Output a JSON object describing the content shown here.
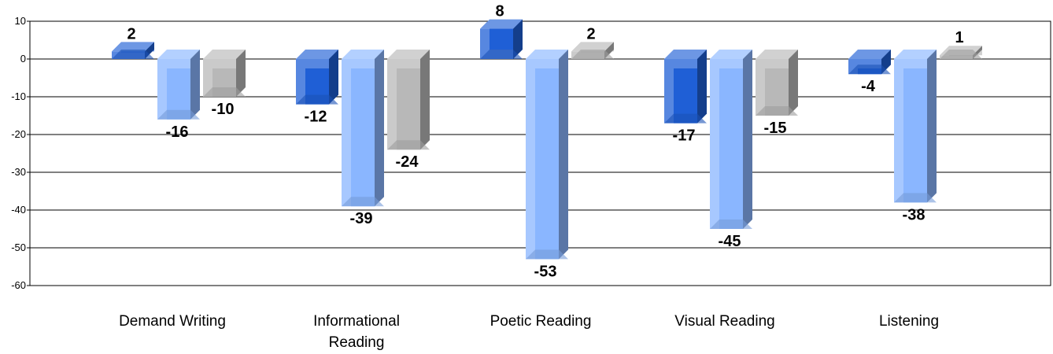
{
  "chart_data": {
    "type": "bar",
    "style": "3d-clustered",
    "categories": [
      [
        "Demand Writing"
      ],
      [
        "Informational",
        "Reading"
      ],
      [
        "Poetic Reading"
      ],
      [
        "Visual Reading"
      ],
      [
        "Listening"
      ]
    ],
    "series": [
      {
        "values": [
          2,
          -12,
          8,
          -17,
          -4
        ],
        "color": "#1f5fd6"
      },
      {
        "values": [
          -16,
          -39,
          -53,
          -45,
          -38
        ],
        "color": "#8ab6ff"
      },
      {
        "values": [
          -10,
          -24,
          2,
          -15,
          1
        ],
        "color": "#b8b8b8"
      }
    ],
    "ylim": [
      -60,
      10
    ],
    "yticks": [
      10,
      0,
      -10,
      -20,
      -30,
      -40,
      -50,
      -60
    ],
    "grid": true,
    "legend": "none"
  }
}
